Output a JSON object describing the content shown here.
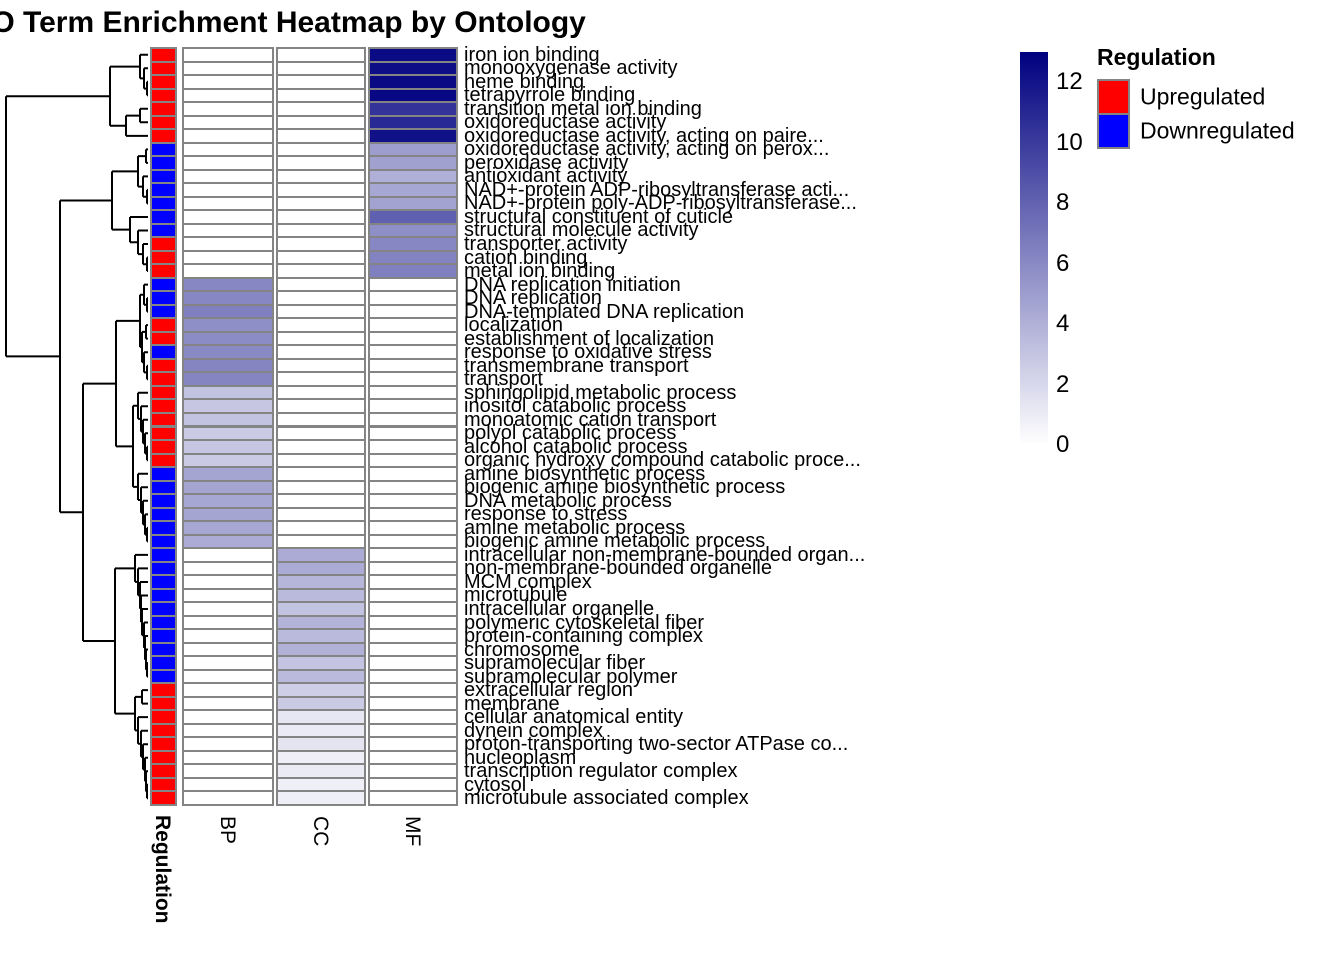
{
  "title": "GO Term Enrichment Heatmap by Ontology",
  "annotation_axis_label": "Regulation",
  "legend": {
    "title": "Regulation",
    "items": [
      {
        "label": "Upregulated",
        "color": "#FF0000"
      },
      {
        "label": "Downregulated",
        "color": "#0000FF"
      }
    ]
  },
  "colors": {
    "grid": "#848484",
    "dendrogram": "#000000",
    "upregulated": "#FF0000",
    "downregulated": "#0000FF",
    "scale_low": "#FFFFFF",
    "scale_high": "#000080"
  },
  "chart_data": {
    "type": "heatmap",
    "title": "GO Term Enrichment Heatmap by Ontology",
    "columns": [
      "BP",
      "CC",
      "MF"
    ],
    "row_annotation": {
      "name": "Regulation",
      "levels": {
        "Upregulated": "#FF0000",
        "Downregulated": "#0000FF"
      }
    },
    "color_scale": {
      "min": 0,
      "max": 13,
      "min_color": "#FFFFFF",
      "max_color": "#000080",
      "legend_ticks": [
        12,
        10,
        8,
        6,
        4,
        2,
        0
      ]
    },
    "rows": [
      {
        "term": "iron ion binding",
        "regulation": "Upregulated",
        "ontology": "MF",
        "value": 12.5
      },
      {
        "term": "monooxygenase activity",
        "regulation": "Upregulated",
        "ontology": "MF",
        "value": 12.3
      },
      {
        "term": "heme binding",
        "regulation": "Upregulated",
        "ontology": "MF",
        "value": 12.5
      },
      {
        "term": "tetrapyrrole binding",
        "regulation": "Upregulated",
        "ontology": "MF",
        "value": 12.6
      },
      {
        "term": "transition metal ion binding",
        "regulation": "Upregulated",
        "ontology": "MF",
        "value": 10.4
      },
      {
        "term": "oxidoreductase activity",
        "regulation": "Upregulated",
        "ontology": "MF",
        "value": 10.9
      },
      {
        "term": "oxidoreductase activity, acting on paire...",
        "regulation": "Upregulated",
        "ontology": "MF",
        "value": 12.2
      },
      {
        "term": "oxidoreductase activity, acting on perox...",
        "regulation": "Downregulated",
        "ontology": "MF",
        "value": 5.0
      },
      {
        "term": "peroxidase activity",
        "regulation": "Downregulated",
        "ontology": "MF",
        "value": 4.8
      },
      {
        "term": "antioxidant activity",
        "regulation": "Downregulated",
        "ontology": "MF",
        "value": 4.1
      },
      {
        "term": "NAD+-protein ADP-ribosyltransferase acti...",
        "regulation": "Downregulated",
        "ontology": "MF",
        "value": 4.5
      },
      {
        "term": "NAD+-protein poly-ADP-ribosyltransferase...",
        "regulation": "Downregulated",
        "ontology": "MF",
        "value": 4.7
      },
      {
        "term": "structural constituent of cuticle",
        "regulation": "Downregulated",
        "ontology": "MF",
        "value": 8.1
      },
      {
        "term": "structural molecule activity",
        "regulation": "Downregulated",
        "ontology": "MF",
        "value": 5.7
      },
      {
        "term": "transporter activity",
        "regulation": "Upregulated",
        "ontology": "MF",
        "value": 6.1
      },
      {
        "term": "cation binding",
        "regulation": "Upregulated",
        "ontology": "MF",
        "value": 6.3
      },
      {
        "term": "metal ion binding",
        "regulation": "Upregulated",
        "ontology": "MF",
        "value": 6.5
      },
      {
        "term": "DNA replication initiation",
        "regulation": "Downregulated",
        "ontology": "BP",
        "value": 6.1
      },
      {
        "term": "DNA replication",
        "regulation": "Downregulated",
        "ontology": "BP",
        "value": 6.1
      },
      {
        "term": "DNA-templated DNA replication",
        "regulation": "Downregulated",
        "ontology": "BP",
        "value": 6.5
      },
      {
        "term": "localization",
        "regulation": "Upregulated",
        "ontology": "BP",
        "value": 5.7
      },
      {
        "term": "establishment of localization",
        "regulation": "Upregulated",
        "ontology": "BP",
        "value": 5.9
      },
      {
        "term": "response to oxidative stress",
        "regulation": "Downregulated",
        "ontology": "BP",
        "value": 6.0
      },
      {
        "term": "transmembrane transport",
        "regulation": "Upregulated",
        "ontology": "BP",
        "value": 6.2
      },
      {
        "term": "transport",
        "regulation": "Upregulated",
        "ontology": "BP",
        "value": 6.2
      },
      {
        "term": "sphingolipid metabolic process",
        "regulation": "Upregulated",
        "ontology": "BP",
        "value": 3.1
      },
      {
        "term": "inositol catabolic process",
        "regulation": "Upregulated",
        "ontology": "BP",
        "value": 2.9
      },
      {
        "term": "monoatomic cation transport",
        "regulation": "Upregulated",
        "ontology": "BP",
        "value": 3.1
      },
      {
        "term": "polyol catabolic process",
        "regulation": "Upregulated",
        "ontology": "BP",
        "value": 2.7
      },
      {
        "term": "alcohol catabolic process",
        "regulation": "Upregulated",
        "ontology": "BP",
        "value": 2.9
      },
      {
        "term": "organic hydroxy compound catabolic proce...",
        "regulation": "Upregulated",
        "ontology": "BP",
        "value": 2.7
      },
      {
        "term": "amine biosynthetic process",
        "regulation": "Downregulated",
        "ontology": "BP",
        "value": 4.6
      },
      {
        "term": "biogenic amine biosynthetic process",
        "regulation": "Downregulated",
        "ontology": "BP",
        "value": 4.6
      },
      {
        "term": "DNA metabolic process",
        "regulation": "Downregulated",
        "ontology": "BP",
        "value": 4.5
      },
      {
        "term": "response to stress",
        "regulation": "Downregulated",
        "ontology": "BP",
        "value": 4.6
      },
      {
        "term": "amine metabolic process",
        "regulation": "Downregulated",
        "ontology": "BP",
        "value": 4.5
      },
      {
        "term": "biogenic amine metabolic process",
        "regulation": "Downregulated",
        "ontology": "BP",
        "value": 4.3
      },
      {
        "term": "intracellular non-membrane-bounded organ...",
        "regulation": "Downregulated",
        "ontology": "CC",
        "value": 4.3
      },
      {
        "term": "non-membrane-bounded organelle",
        "regulation": "Downregulated",
        "ontology": "CC",
        "value": 4.3
      },
      {
        "term": "MCM complex",
        "regulation": "Downregulated",
        "ontology": "CC",
        "value": 3.7
      },
      {
        "term": "microtubule",
        "regulation": "Downregulated",
        "ontology": "CC",
        "value": 3.5
      },
      {
        "term": "intracellular organelle",
        "regulation": "Downregulated",
        "ontology": "CC",
        "value": 3.1
      },
      {
        "term": "polymeric cytoskeletal fiber",
        "regulation": "Downregulated",
        "ontology": "CC",
        "value": 3.9
      },
      {
        "term": "protein-containing complex",
        "regulation": "Downregulated",
        "ontology": "CC",
        "value": 3.5
      },
      {
        "term": "chromosome",
        "regulation": "Downregulated",
        "ontology": "CC",
        "value": 4.0
      },
      {
        "term": "supramolecular fiber",
        "regulation": "Downregulated",
        "ontology": "CC",
        "value": 3.0
      },
      {
        "term": "supramolecular polymer",
        "regulation": "Downregulated",
        "ontology": "CC",
        "value": 3.5
      },
      {
        "term": "extracellular region",
        "regulation": "Upregulated",
        "ontology": "CC",
        "value": 2.5
      },
      {
        "term": "membrane",
        "regulation": "Upregulated",
        "ontology": "CC",
        "value": 2.7
      },
      {
        "term": "cellular anatomical entity",
        "regulation": "Upregulated",
        "ontology": "CC",
        "value": 1.2
      },
      {
        "term": "dynein complex",
        "regulation": "Upregulated",
        "ontology": "CC",
        "value": 1.0
      },
      {
        "term": "proton-transporting two-sector ATPase co...",
        "regulation": "Upregulated",
        "ontology": "CC",
        "value": 1.4
      },
      {
        "term": "nucleoplasm",
        "regulation": "Upregulated",
        "ontology": "CC",
        "value": 0.8
      },
      {
        "term": "transcription regulator complex",
        "regulation": "Upregulated",
        "ontology": "CC",
        "value": 1.0
      },
      {
        "term": "cytosol",
        "regulation": "Upregulated",
        "ontology": "CC",
        "value": 0.8
      },
      {
        "term": "microtubule associated complex",
        "regulation": "Upregulated",
        "ontology": "CC",
        "value": 0.8
      }
    ]
  },
  "dendrogram": {
    "orientation": "left",
    "tree": [
      6,
      [
        110,
        [
          140,
          1,
          [
            144,
            2,
            [
              147,
              3,
              4
            ]
          ]
        ],
        [
          126,
          [
            140,
            5,
            6
          ],
          7
        ]
      ],
      [
        60,
        [
          112,
          [
            138,
            [
              146,
              8,
              9
            ],
            [
              143,
              10,
              [
                147,
                11,
                12
              ]
            ]
          ],
          [
            130,
            13,
            [
              138,
              14,
              [
                143,
                15,
                [
                  147,
                  16,
                  17
                ]
              ]
            ]
          ]
        ],
        [
          83,
          [
            116,
            [
              140,
              [
                144,
                18,
                [
                  147,
                  19,
                  20
                ]
              ],
              [
                142,
                [
                  146,
                  21,
                  22
                ],
                [
                  144,
                  23,
                  [
                    147,
                    24,
                    25
                  ]
                ]
              ]
            ],
            [
              133,
              [
                138,
                26,
                [
                  141,
                  27,
                  [
                    143,
                    28,
                    [
                      145,
                      29,
                      [
                        147,
                        30,
                        31
                      ]
                    ]
                  ]
                ]
              ],
              [
                138,
                32,
                [
                  141,
                  33,
                  [
                    143,
                    34,
                    [
                      145,
                      35,
                      [
                        147,
                        36,
                        37
                      ]
                    ]
                  ]
                ]
              ]
            ]
          ],
          [
            115,
            [
              135,
              38,
              [
                138,
                39,
                [
                  140,
                  40,
                  [
                    141,
                    41,
                    [
                      142,
                      42,
                      [
                        144,
                        43,
                        [
                          145,
                          44,
                          [
                            146,
                            45,
                            [
                              147,
                              46,
                              47
                            ]
                          ]
                        ]
                      ]
                    ]
                  ]
                ]
              ]
            ],
            [
              135,
              [
                142,
                48,
                49
              ],
              [
                138,
                50,
                [
                  141,
                  51,
                  [
                    143,
                    52,
                    [
                      145,
                      53,
                      [
                        146,
                        54,
                        [
                          147,
                          55,
                          56
                        ]
                      ]
                    ]
                  ]
                ]
              ]
            ]
          ]
        ]
      ]
    ]
  }
}
